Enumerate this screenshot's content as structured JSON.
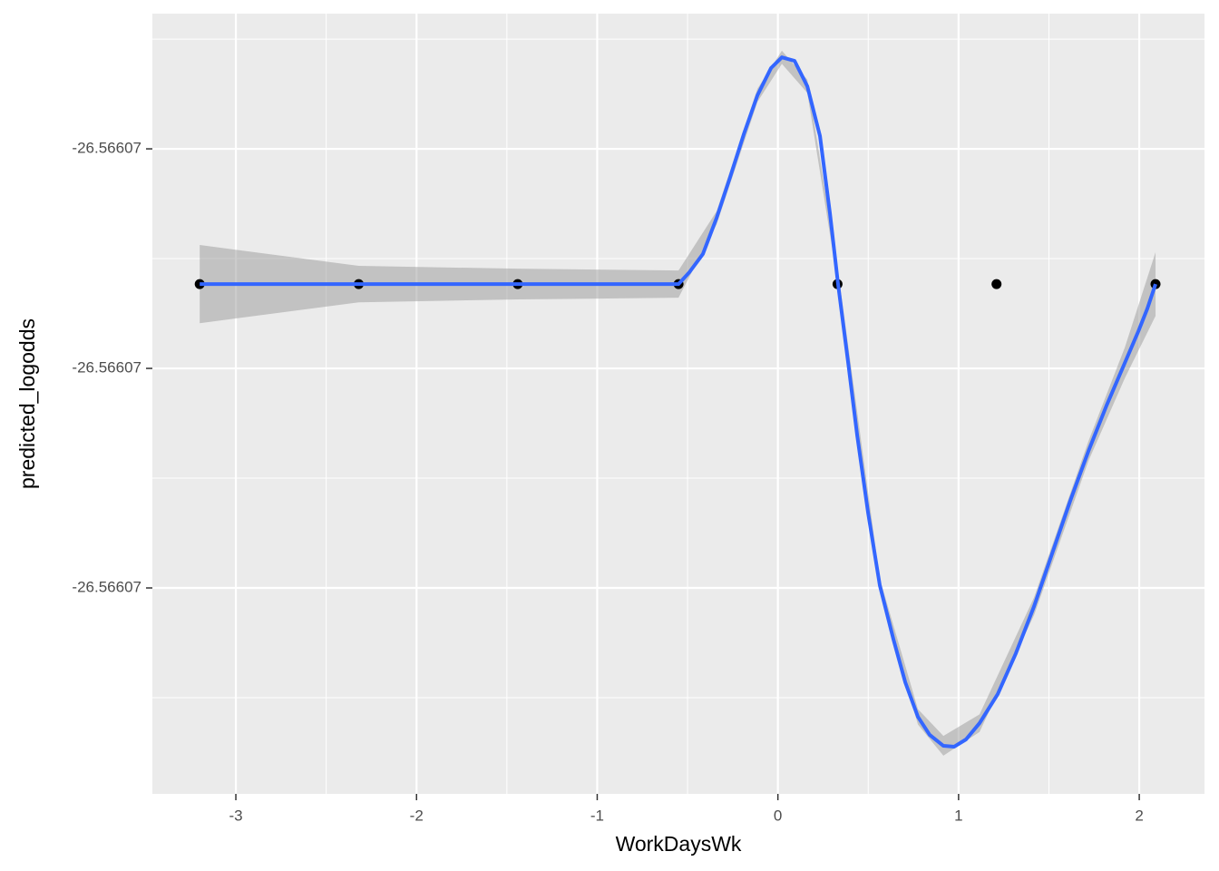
{
  "chart_data": {
    "type": "scatter",
    "x_label": "WorkDaysWk",
    "y_label": "predicted_logodds",
    "xlim": [
      -3.462,
      2.361
    ],
    "ylim": [
      -26.5660701938,
      -26.5660698384
    ],
    "xticks": [
      -3,
      -2,
      -1,
      0,
      1,
      2
    ],
    "x_minor_ticks": [
      -2.5,
      -1.5,
      -0.5,
      0.5,
      1.5
    ],
    "yticks": [
      {
        "value": -26.5660699,
        "label": "-26.56607"
      },
      {
        "value": -26.56607,
        "label": "-26.56607"
      },
      {
        "value": -26.5660701,
        "label": "-26.56607"
      }
    ],
    "y_minor_ticks": [
      -26.56606985,
      -26.56606995,
      -26.56607005,
      -26.56607015
    ],
    "grid": true,
    "points": {
      "color": "#000000",
      "x": [
        -3.2,
        -2.32,
        -1.44,
        -0.55,
        0.33,
        1.21,
        2.09
      ],
      "y": [
        -26.5660699616,
        -26.5660699616,
        -26.5660699616,
        -26.5660699616,
        -26.5660699616,
        -26.5660699616,
        -26.5660699616
      ]
    },
    "ribbon": {
      "color": "#999999",
      "x": [
        -3.2,
        -2.32,
        -1.44,
        -0.55,
        -0.339,
        -0.113,
        0.022,
        0.163,
        0.338,
        0.564,
        0.775,
        0.916,
        1.116,
        1.418,
        1.719,
        1.92,
        2.09
      ],
      "ymax": [
        -26.5660699438,
        -26.5660699533,
        -26.5660699546,
        -26.5660699554,
        -26.5660699284,
        -26.5660698726,
        -26.5660698553,
        -26.5660698685,
        -26.5660699586,
        -26.5660700958,
        -26.5660701552,
        -26.5660701674,
        -26.5660701576,
        -26.5660701043,
        -26.5660700331,
        -26.5660699905,
        -26.5660699471
      ],
      "ymin": [
        -26.5660699794,
        -26.5660699699,
        -26.5660699686,
        -26.5660699678,
        -26.5660699344,
        -26.5660698786,
        -26.5660698613,
        -26.5660698745,
        -26.5660699646,
        -26.5660701018,
        -26.5660701622,
        -26.5660701764,
        -26.5660701656,
        -26.5660701123,
        -26.5660700421,
        -26.5660700045,
        -26.5660699761
      ]
    },
    "smooth": {
      "color": "#3366ff",
      "x": [
        -3.2,
        -0.55,
        -0.49,
        -0.415,
        -0.339,
        -0.264,
        -0.189,
        -0.113,
        -0.038,
        0.022,
        0.092,
        0.163,
        0.233,
        0.288,
        0.333,
        0.389,
        0.439,
        0.499,
        0.564,
        0.64,
        0.705,
        0.775,
        0.84,
        0.916,
        0.976,
        1.041,
        1.116,
        1.217,
        1.317,
        1.418,
        1.518,
        1.618,
        1.719,
        1.819,
        1.92,
        1.995,
        2.045,
        2.09
      ],
      "y": [
        -26.5660699616,
        -26.5660699616,
        -26.5660699562,
        -26.5660699479,
        -26.5660699314,
        -26.5660699128,
        -26.5660698934,
        -26.5660698756,
        -26.5660698632,
        -26.5660698583,
        -26.5660698599,
        -26.5660698715,
        -26.5660698942,
        -26.5660699293,
        -26.5660699616,
        -26.5660699975,
        -26.5660700306,
        -26.5660700657,
        -26.5660700988,
        -26.5660701236,
        -26.566070143,
        -26.5660701587,
        -26.5660701669,
        -26.5660701719,
        -26.5660701723,
        -26.566070169,
        -26.5660701616,
        -26.5660701483,
        -26.5660701298,
        -26.5660701083,
        -26.5660700843,
        -26.5660700603,
        -26.5660700376,
        -26.5660700169,
        -26.5660699975,
        -26.5660699831,
        -26.5660699727,
        -26.5660699616
      ]
    }
  }
}
